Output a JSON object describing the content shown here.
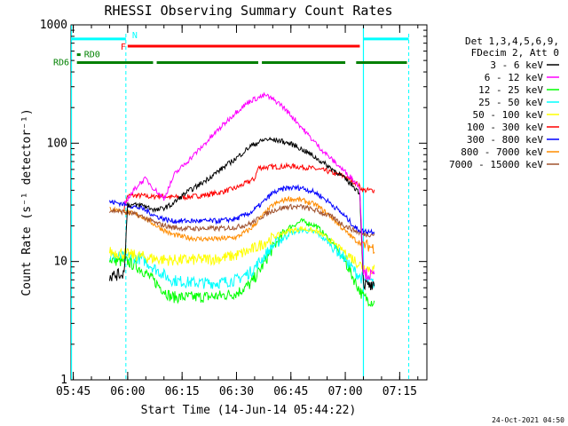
{
  "chart_data": {
    "type": "line",
    "title": "RHESSI Observing Summary Count Rates",
    "xlabel": "Start Time (14-Jun-14 05:44:22)",
    "ylabel": "Count Rate (s⁻¹ detector⁻¹)",
    "yscale": "log",
    "ylim": [
      1,
      1000
    ],
    "xlim": [
      "05:44:22",
      "07:22:30"
    ],
    "x_ticks": [
      "05:45",
      "06:00",
      "06:15",
      "06:30",
      "06:45",
      "07:00",
      "07:15"
    ],
    "y_ticks": [
      "1",
      "10",
      "100",
      "1000"
    ],
    "grid": false,
    "legend_position": "right",
    "legend_header": [
      "Det 1,3,4,5,6,9,",
      "FDecim 2, Att 0"
    ],
    "series": [
      {
        "name": "3 - 6 keV",
        "color": "#000000",
        "x": [
          "05:55",
          "05:58",
          "05:59",
          "06:00",
          "06:04",
          "06:08",
          "06:12",
          "06:16",
          "06:20",
          "06:25",
          "06:30",
          "06:34",
          "06:38",
          "06:42",
          "06:46",
          "06:50",
          "06:54",
          "06:58",
          "07:02",
          "07:04",
          "07:05",
          "07:08"
        ],
        "y": [
          7.5,
          7.8,
          8,
          30,
          30,
          27,
          30,
          38,
          45,
          58,
          75,
          95,
          108,
          105,
          96,
          82,
          68,
          56,
          44,
          38,
          6.5,
          6
        ]
      },
      {
        "name": "6 - 12 keV",
        "color": "#ff00ff",
        "x": [
          "05:59",
          "06:00",
          "06:03",
          "06:05",
          "06:07",
          "06:10",
          "06:13",
          "06:16",
          "06:20",
          "06:25",
          "06:30",
          "06:34",
          "06:38",
          "06:42",
          "06:46",
          "06:50",
          "06:54",
          "06:58",
          "07:02",
          "07:04",
          "07:05",
          "07:08"
        ],
        "y": [
          30,
          34,
          45,
          50,
          42,
          34,
          55,
          68,
          90,
          130,
          185,
          230,
          255,
          215,
          160,
          115,
          85,
          65,
          50,
          42,
          8,
          7.5
        ]
      },
      {
        "name": "12 - 25 keV",
        "color": "#00ff00",
        "x": [
          "05:55",
          "05:58",
          "06:00",
          "06:04",
          "06:08",
          "06:12",
          "06:16",
          "06:20",
          "06:25",
          "06:30",
          "06:34",
          "06:37",
          "06:40",
          "06:44",
          "06:48",
          "06:52",
          "06:56",
          "07:00",
          "07:03",
          "07:05",
          "07:08"
        ],
        "y": [
          10.5,
          10,
          10,
          8.5,
          6.5,
          5,
          5,
          5,
          5.1,
          5.4,
          6.5,
          9,
          13,
          19,
          22,
          20,
          15,
          10,
          6.5,
          5,
          4.5
        ]
      },
      {
        "name": "25 - 50 keV",
        "color": "#00ffff",
        "x": [
          "05:55",
          "05:58",
          "06:00",
          "06:04",
          "06:08",
          "06:12",
          "06:16",
          "06:20",
          "06:25",
          "06:30",
          "06:34",
          "06:37",
          "06:40",
          "06:44",
          "06:48",
          "06:52",
          "06:56",
          "07:00",
          "07:03",
          "07:05",
          "07:08"
        ],
        "y": [
          11,
          11,
          11,
          10.5,
          8.5,
          7,
          6.7,
          6.6,
          6.6,
          7,
          8.2,
          10.5,
          13.5,
          17,
          18.5,
          17.5,
          14,
          10.5,
          8,
          7,
          6.5
        ]
      },
      {
        "name": "50 - 100 keV",
        "color": "#ffff00",
        "x": [
          "05:55",
          "05:58",
          "06:00",
          "06:04",
          "06:08",
          "06:12",
          "06:16",
          "06:20",
          "06:25",
          "06:30",
          "06:34",
          "06:37",
          "06:40",
          "06:44",
          "06:48",
          "06:52",
          "06:56",
          "07:00",
          "07:03",
          "07:05",
          "07:08"
        ],
        "y": [
          12,
          11.8,
          11.5,
          11,
          10.5,
          10.3,
          10.3,
          10.4,
          10.6,
          11.3,
          12.5,
          14,
          16,
          18,
          19,
          18,
          15,
          12,
          10,
          9,
          8.5
        ]
      },
      {
        "name": "100 - 300 keV",
        "color": "#ff0000",
        "x": [
          "05:59",
          "06:00",
          "06:04",
          "06:07",
          "06:08",
          "06:12",
          "06:16",
          "06:20",
          "06:25",
          "06:30",
          "06:35",
          "06:36",
          "06:40",
          "06:45",
          "06:50",
          "06:55",
          "07:00",
          "07:03",
          "07:05",
          "07:08"
        ],
        "y": [
          28,
          36,
          36,
          35,
          36,
          35,
          35,
          36,
          38,
          42,
          50,
          62,
          63,
          64,
          62,
          58,
          52,
          46,
          40,
          40
        ]
      },
      {
        "name": "300 - 800 keV",
        "color": "#0000ff",
        "x": [
          "05:55",
          "05:58",
          "06:00",
          "06:04",
          "06:08",
          "06:12",
          "06:16",
          "06:20",
          "06:25",
          "06:30",
          "06:34",
          "06:37",
          "06:40",
          "06:44",
          "06:48",
          "06:52",
          "06:56",
          "07:00",
          "07:03",
          "07:05",
          "07:08"
        ],
        "y": [
          32,
          31,
          30,
          28,
          24,
          22,
          22,
          22,
          22,
          23,
          26,
          31,
          38,
          42,
          42,
          38,
          31,
          24,
          19,
          18,
          18
        ]
      },
      {
        "name": "800 - 7000 keV",
        "color": "#ff8c00",
        "x": [
          "05:55",
          "05:58",
          "06:00",
          "06:04",
          "06:08",
          "06:12",
          "06:16",
          "06:20",
          "06:25",
          "06:30",
          "06:34",
          "06:37",
          "06:40",
          "06:44",
          "06:48",
          "06:52",
          "06:56",
          "07:00",
          "07:03",
          "07:05",
          "07:08"
        ],
        "y": [
          28,
          27,
          26,
          24,
          20,
          17,
          16,
          15.5,
          15.5,
          16,
          19,
          24,
          30,
          34,
          33,
          30,
          24,
          18,
          15,
          14,
          13
        ]
      },
      {
        "name": "7000 - 15000 keV",
        "color": "#a0522d",
        "x": [
          "05:55",
          "05:58",
          "06:00",
          "06:04",
          "06:08",
          "06:12",
          "06:16",
          "06:20",
          "06:25",
          "06:30",
          "06:34",
          "06:37",
          "06:40",
          "06:44",
          "06:48",
          "06:52",
          "06:56",
          "07:00",
          "07:03",
          "07:05",
          "07:08"
        ],
        "y": [
          27,
          26.5,
          26,
          24,
          21,
          19.5,
          19,
          19,
          19,
          19.5,
          21,
          24,
          27,
          29,
          29,
          27,
          24,
          20,
          18,
          17,
          17
        ]
      }
    ],
    "annotations": {
      "N": {
        "label": "N",
        "color": "#00ffff",
        "segments": [
          [
            "05:44:22",
            "05:59:30"
          ],
          [
            "07:05",
            "07:17:30"
          ]
        ]
      },
      "F": {
        "label": "F",
        "color": "#ff0000",
        "segments": [
          [
            "06:00",
            "07:04"
          ]
        ]
      },
      "RD0": {
        "label": "RD0",
        "color": "#008000",
        "segments": [
          [
            "05:46",
            "05:47"
          ]
        ]
      },
      "RD6": {
        "label": "RD6",
        "color": "#008000",
        "segments": [
          [
            "05:46",
            "06:07"
          ],
          [
            "06:08",
            "06:36"
          ],
          [
            "06:37",
            "07:00"
          ],
          [
            "07:03",
            "07:17"
          ]
        ]
      },
      "eclipse_markers": [
        "05:59:30",
        "07:17:30"
      ],
      "night_markers": [
        "05:44:30",
        "07:05"
      ]
    },
    "timestamp": "24-Oct-2021 04:50"
  }
}
